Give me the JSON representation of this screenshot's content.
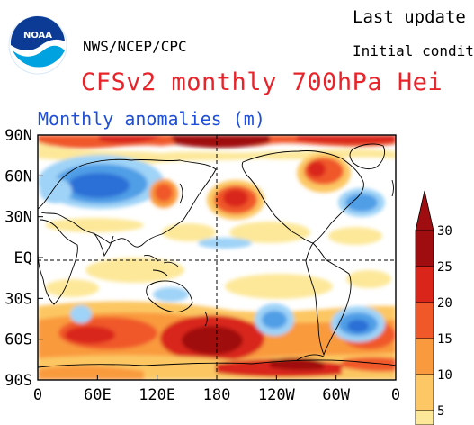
{
  "header": {
    "agency": "NWS/NCEP/CPC",
    "last_update": "Last update",
    "initial_conditions": "Initial conditio",
    "title": "CFSv2 monthly 700hPa Hei",
    "subtitle": "Monthly anomalies (m)",
    "logo_text": "NOAA"
  },
  "map": {
    "lat_labels": [
      "90N",
      "60N",
      "30N",
      "EQ",
      "30S",
      "60S",
      "90S"
    ],
    "lon_labels": [
      "0",
      "60E",
      "120E",
      "180",
      "120W",
      "60W",
      "0"
    ],
    "dashed_lines": [
      "EQ",
      "180"
    ]
  },
  "colorbar": {
    "labels": [
      "30",
      "25",
      "20",
      "15",
      "10",
      "5"
    ],
    "colors": [
      "#a00d10",
      "#d9251a",
      "#f0582a",
      "#f99a3e",
      "#fcc764",
      "#fde89a"
    ]
  },
  "colors": {
    "title": "#e8242b",
    "subtitle": "#1f4fd8",
    "deep_red": "#a00d10",
    "red": "#d9251a",
    "orange": "#f0582a",
    "light_orange": "#f99a3e",
    "yellow": "#fcc764",
    "pale_yellow": "#fde89a",
    "light_blue": "#9fd3f7",
    "blue": "#4f9ee6",
    "dark_blue": "#2c6fd6"
  }
}
